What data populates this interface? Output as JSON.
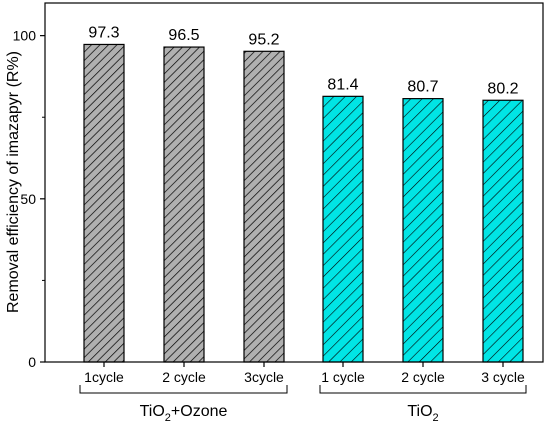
{
  "chart_data": {
    "type": "bar",
    "ylabel": "Removal efficiency of imazapyr (R%)",
    "xlabel": "",
    "ylim": [
      0,
      110
    ],
    "yticks": [
      0,
      50,
      100
    ],
    "categories": [
      "1cycle",
      "2 cycle",
      "3cycle",
      "1 cycle",
      "2 cycle",
      "3 cycle"
    ],
    "values": [
      97.3,
      96.5,
      95.2,
      81.4,
      80.7,
      80.2
    ],
    "value_labels": [
      "97.3",
      "96.5",
      "95.2",
      "81.4",
      "80.7",
      "80.2"
    ],
    "groups": [
      {
        "label_main": "TiO",
        "label_sub": "2",
        "label_rest": "+Ozone",
        "color": "#b0b0b0",
        "indices": [
          0,
          1,
          2
        ]
      },
      {
        "label_main": "TiO",
        "label_sub": "2",
        "label_rest": "",
        "color": "#00e5e5",
        "indices": [
          3,
          4,
          5
        ]
      }
    ],
    "grid": false,
    "legend": "none"
  }
}
